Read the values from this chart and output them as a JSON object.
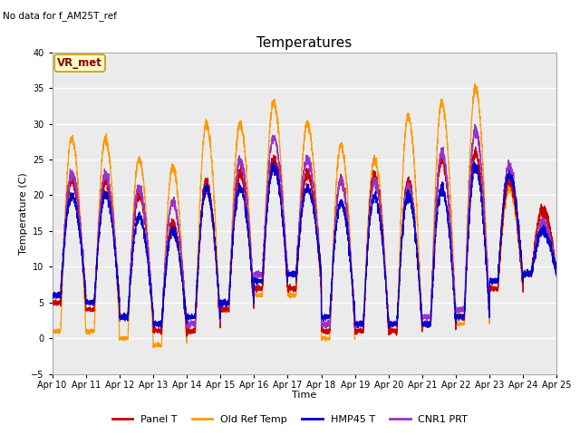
{
  "title": "Temperatures",
  "xlabel": "Time",
  "ylabel": "Temperature (C)",
  "ylim": [
    -5,
    40
  ],
  "xlim": [
    0,
    15
  ],
  "x_tick_labels": [
    "Apr 10",
    "Apr 11",
    "Apr 12",
    "Apr 13",
    "Apr 14",
    "Apr 15",
    "Apr 16",
    "Apr 17",
    "Apr 18",
    "Apr 19",
    "Apr 20",
    "Apr 21",
    "Apr 22",
    "Apr 23",
    "Apr 24",
    "Apr 25"
  ],
  "annotation_text": "No data for f_AM25T_ref",
  "legend_box_text": "VR_met",
  "colors": {
    "panel_t": "#cc0000",
    "old_ref": "#ff9900",
    "hmp45": "#0000cc",
    "cnr1": "#9933cc"
  },
  "legend_labels": [
    "Panel T",
    "Old Ref Temp",
    "HMP45 T",
    "CNR1 PRT"
  ],
  "plot_bg": "#ebebeb",
  "fig_bg": "#ffffff",
  "grid_color": "#ffffff",
  "title_fontsize": 11,
  "label_fontsize": 8,
  "tick_fontsize": 7,
  "legend_fontsize": 8,
  "yticks": [
    -5,
    0,
    5,
    10,
    15,
    20,
    25,
    30,
    35,
    40
  ]
}
